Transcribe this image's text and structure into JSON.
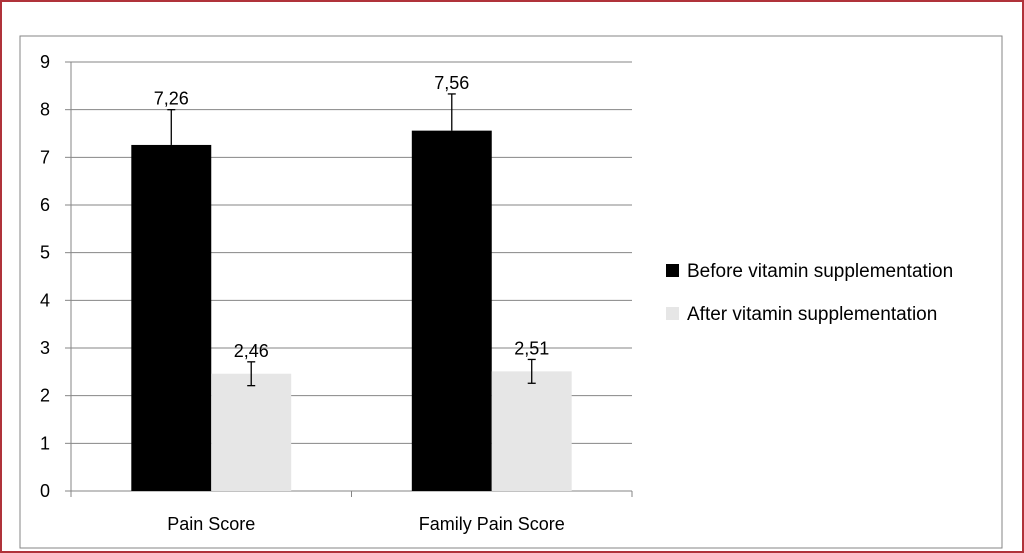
{
  "chart_data": {
    "type": "bar",
    "title": "",
    "xlabel": "",
    "ylabel": "",
    "categories": [
      "Pain Score",
      "Family Pain Score"
    ],
    "series": [
      {
        "name": "Before vitamin supplementation",
        "color": "#000000",
        "values": [
          7.26,
          7.56
        ],
        "value_labels": [
          "7,26",
          "7,56"
        ],
        "error_plus": [
          0.74,
          0.77
        ],
        "error_minus": [
          0.0,
          0.0
        ]
      },
      {
        "name": "After vitamin supplementation",
        "color": "#e6e6e6",
        "values": [
          2.46,
          2.51
        ],
        "value_labels": [
          "2,46",
          "2,51"
        ],
        "error_plus": [
          0.25,
          0.25
        ],
        "error_minus": [
          0.25,
          0.25
        ]
      }
    ],
    "ylim": [
      0,
      9
    ],
    "yticks": [
      "0",
      "1",
      "2",
      "3",
      "4",
      "5",
      "6",
      "7",
      "8",
      "9"
    ],
    "grid": true,
    "legend_position": "right",
    "frame_color": "#b0323a",
    "grid_color": "#868686"
  }
}
